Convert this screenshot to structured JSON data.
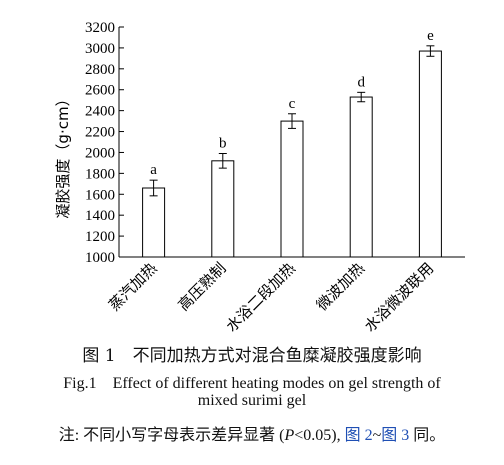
{
  "chart_data": {
    "type": "bar",
    "title": "",
    "xlabel": "",
    "ylabel": "凝胶强度（g·cm）",
    "ylim": [
      1000,
      3200
    ],
    "yticks": [
      1000,
      1200,
      1400,
      1600,
      1800,
      2000,
      2200,
      2400,
      2600,
      2800,
      3000,
      3200
    ],
    "categories": [
      "蒸汽加热",
      "高压熟制",
      "水浴二段加热",
      "微波加热",
      "水浴微波联用"
    ],
    "values": [
      1660,
      1920,
      2300,
      2530,
      2970
    ],
    "errors": [
      75,
      70,
      70,
      45,
      50
    ],
    "significance_letters": [
      "a",
      "b",
      "c",
      "d",
      "e"
    ],
    "bar_fill": "#ffffff",
    "bar_stroke": "#000000",
    "grid": false,
    "legend": "none"
  },
  "caption": {
    "cn": "图 1　不同加热方式对混合鱼糜凝胶强度影响",
    "en_line1": "Fig.1　Effect of different heating modes on gel strength of",
    "en_line2": "mixed surimi gel"
  },
  "note": {
    "prefix": "注: 不同小写字母表示差异显著 (",
    "p": "P",
    "mid": "<0.05), ",
    "ref1": "图 2",
    "tilde": "~",
    "ref2": "图 3",
    "suffix": " 同。",
    "link_color": "#1f4fb4"
  }
}
